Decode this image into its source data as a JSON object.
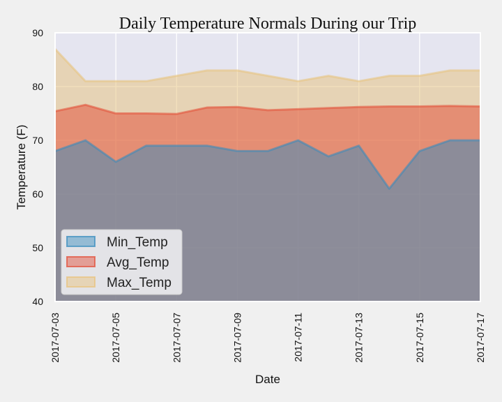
{
  "chart_data": {
    "type": "area",
    "title": "Daily Temperature Normals During our Trip",
    "xlabel": "Date",
    "ylabel": "Temperature (F)",
    "x": [
      "2017-07-03",
      "2017-07-04",
      "2017-07-05",
      "2017-07-06",
      "2017-07-07",
      "2017-07-08",
      "2017-07-09",
      "2017-07-10",
      "2017-07-11",
      "2017-07-12",
      "2017-07-13",
      "2017-07-14",
      "2017-07-15",
      "2017-07-16",
      "2017-07-17"
    ],
    "xticks": [
      "2017-07-03",
      "2017-07-05",
      "2017-07-07",
      "2017-07-09",
      "2017-07-11",
      "2017-07-13",
      "2017-07-15",
      "2017-07-17"
    ],
    "ylim": [
      40,
      90
    ],
    "yticks": [
      40,
      50,
      60,
      70,
      80,
      90
    ],
    "stacked": false,
    "grid": true,
    "legend_position": "lower-left",
    "series": [
      {
        "name": "Min_Temp",
        "color": "#348abd",
        "values": [
          68,
          70,
          66,
          69,
          69,
          69,
          68,
          68,
          70,
          67,
          69,
          61,
          68,
          70,
          70
        ]
      },
      {
        "name": "Avg_Temp",
        "color": "#e24a33",
        "values": [
          75.4,
          76.6,
          75.0,
          75.0,
          74.9,
          76.1,
          76.2,
          75.6,
          75.8,
          76.0,
          76.2,
          76.3,
          76.3,
          76.4,
          76.3
        ]
      },
      {
        "name": "Max_Temp",
        "color": "#e8c27a",
        "values": [
          87,
          81,
          81,
          81,
          82,
          83,
          83,
          82,
          81,
          82,
          81,
          82,
          82,
          83,
          83
        ]
      }
    ]
  }
}
